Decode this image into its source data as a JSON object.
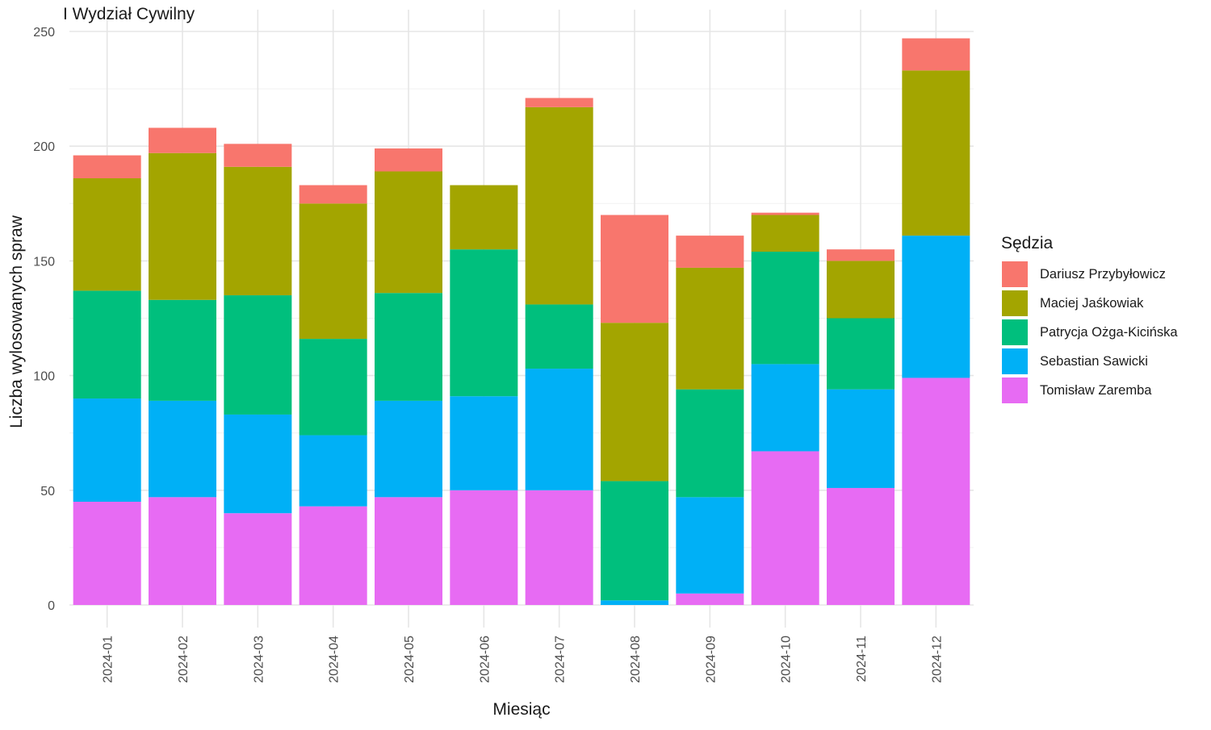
{
  "chart_data": {
    "type": "bar",
    "stacked": true,
    "title": "I Wydział Cywilny",
    "xlabel": "Miesiąc",
    "ylabel": "Liczba wylosowanych spraw",
    "ylim": [
      0,
      250
    ],
    "yticks": [
      0,
      50,
      100,
      150,
      200,
      250
    ],
    "grid": true,
    "legend_title": "Sędzia",
    "legend_position": "right",
    "categories": [
      "2024-01",
      "2024-02",
      "2024-03",
      "2024-04",
      "2024-05",
      "2024-06",
      "2024-07",
      "2024-08",
      "2024-09",
      "2024-10",
      "2024-11",
      "2024-12"
    ],
    "series": [
      {
        "name": "Tomisław Zaremba",
        "color": "#E76BF3",
        "values": [
          45,
          47,
          40,
          43,
          47,
          50,
          50,
          0,
          5,
          67,
          51,
          99
        ]
      },
      {
        "name": "Sebastian Sawicki",
        "color": "#00B0F6",
        "values": [
          45,
          42,
          43,
          31,
          42,
          41,
          53,
          2,
          42,
          38,
          43,
          62
        ]
      },
      {
        "name": "Patrycja Ożga-Kicińska",
        "color": "#00BF7D",
        "values": [
          47,
          44,
          52,
          42,
          47,
          64,
          28,
          52,
          47,
          49,
          31,
          0
        ]
      },
      {
        "name": "Maciej Jaśkowiak",
        "color": "#A3A500",
        "values": [
          49,
          64,
          56,
          59,
          53,
          28,
          86,
          69,
          53,
          16,
          25,
          72
        ]
      },
      {
        "name": "Dariusz Przybyłowicz",
        "color": "#F8766D",
        "values": [
          10,
          11,
          10,
          8,
          10,
          0,
          4,
          47,
          14,
          1,
          5,
          14
        ]
      }
    ],
    "legend_order": [
      "Dariusz Przybyłowicz",
      "Maciej Jaśkowiak",
      "Patrycja Ożga-Kicińska",
      "Sebastian Sawicki",
      "Tomisław Zaremba"
    ]
  }
}
